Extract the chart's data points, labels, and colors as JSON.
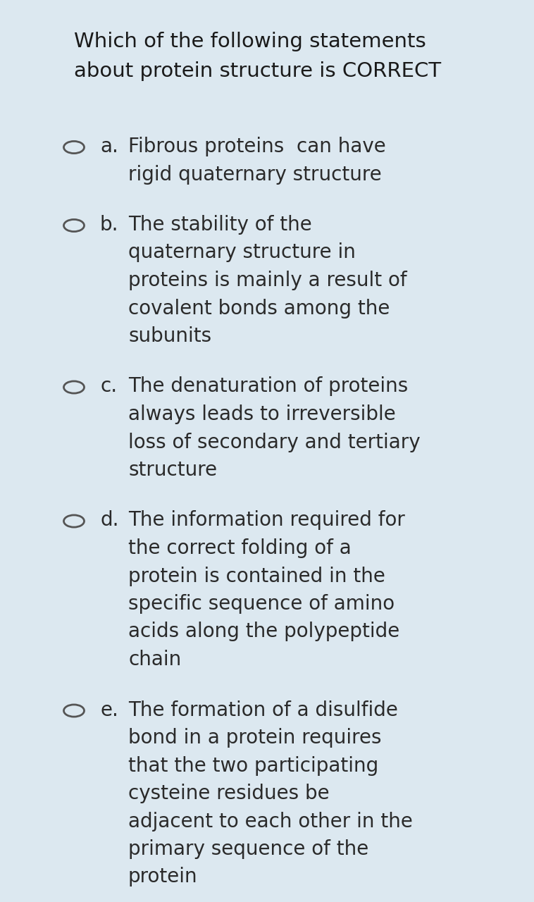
{
  "outer_bg": "#dce8f0",
  "card_bg": "#dce8f0",
  "title_lines": [
    "Which of the following statements",
    "about protein structure is CORRECT"
  ],
  "title_color": "#1a1a1a",
  "option_color": "#2a2a2a",
  "circle_color": "#555555",
  "options": [
    {
      "label": "a.",
      "lines": [
        "Fibrous proteins  can have",
        "rigid quaternary structure"
      ]
    },
    {
      "label": "b.",
      "lines": [
        "The stability of the",
        "quaternary structure in",
        "proteins is mainly a result of",
        "covalent bonds among the",
        "subunits"
      ]
    },
    {
      "label": "c.",
      "lines": [
        "The denaturation of proteins",
        "always leads to irreversible",
        "loss of secondary and tertiary",
        "structure"
      ]
    },
    {
      "label": "d.",
      "lines": [
        "The information required for",
        "the correct folding of a",
        "protein is contained in the",
        "specific sequence of amino",
        "acids along the polypeptide",
        "chain"
      ]
    },
    {
      "label": "e.",
      "lines": [
        "The formation of a disulfide",
        "bond in a protein requires",
        "that the two participating",
        "cysteine residues be",
        "adjacent to each other in the",
        "primary sequence of the",
        "protein"
      ]
    }
  ]
}
